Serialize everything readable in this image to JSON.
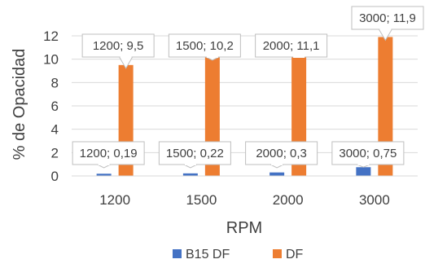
{
  "chart_data": {
    "type": "bar",
    "categories": [
      "1200",
      "1500",
      "2000",
      "3000"
    ],
    "series": [
      {
        "name": "B15 DF",
        "color": "#4472C4",
        "values": [
          0.19,
          0.22,
          0.3,
          0.75
        ],
        "labels": [
          "1200; 0,19",
          "1500; 0,22",
          "2000; 0,3",
          "3000; 0,75"
        ]
      },
      {
        "name": "DF",
        "color": "#ED7D31",
        "values": [
          9.5,
          10.2,
          11.1,
          11.9
        ],
        "labels": [
          "1200; 9,5",
          "1500; 10,2",
          "2000; 11,1",
          "3000; 11,9"
        ]
      }
    ],
    "xlabel": "RPM",
    "ylabel": "% de Opacidad",
    "ylim": [
      0,
      12
    ],
    "yticks": [
      0,
      2,
      4,
      6,
      8,
      10,
      12
    ],
    "grid": true,
    "legend_position": "bottom"
  }
}
